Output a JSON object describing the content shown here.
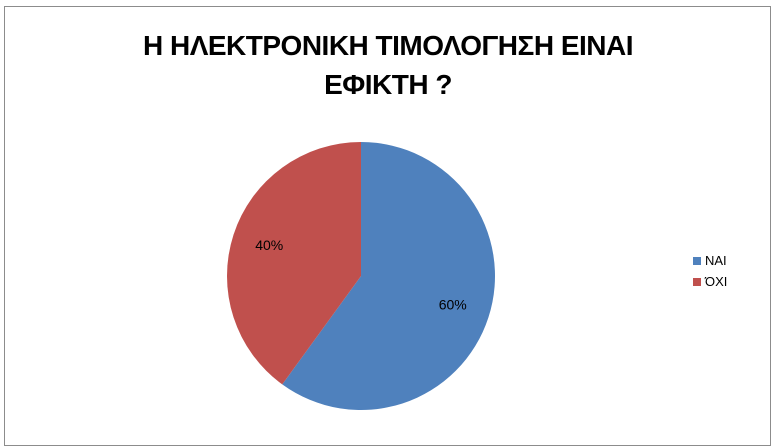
{
  "chart_data": {
    "type": "pie",
    "title_lines": [
      "Η ΗΛΕΚΤΡΟΝΙΚΗ ΤΙΜΟΛΟΓΗΣΗ ΕΙΝΑΙ",
      "ΕΦΙΚΤΗ ?"
    ],
    "slices": [
      {
        "name": "ΝΑΙ",
        "value": 60,
        "label": "60%",
        "color": "#4f81bd"
      },
      {
        "name": "ΌΧΙ",
        "value": 40,
        "label": "40%",
        "color": "#c0504d"
      }
    ],
    "legend_position": "right"
  }
}
